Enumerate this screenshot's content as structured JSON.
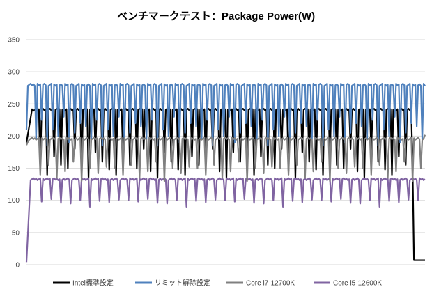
{
  "chart_data": {
    "type": "line",
    "title": "ベンチマークテスト：Package Power(W)",
    "xlabel": "",
    "ylabel": "",
    "ylim": [
      0,
      350
    ],
    "yticks": [
      0,
      50,
      100,
      150,
      200,
      250,
      300,
      350
    ],
    "grid": true,
    "legend_position": "bottom",
    "x_count": 290,
    "series": [
      {
        "name": "Intel標準設定",
        "color": "#000000",
        "baseline": 241,
        "start_value": 190,
        "ramp_end_index": 4,
        "end_value": 7,
        "drop_start_index": 281,
        "dip_every": 5,
        "dip_values": [
          175,
          160,
          148,
          140,
          168,
          155,
          150,
          180,
          145,
          135
        ]
      },
      {
        "name": "リミット解除設定",
        "color": "#4f81bd",
        "baseline": 280,
        "start_value": 210,
        "ramp_end_index": 1,
        "end_value": 278,
        "drop_start_index": 290,
        "dip_every": 4,
        "dip_values": [
          215,
          195,
          225,
          185,
          210,
          200,
          230,
          190,
          205,
          220
        ]
      },
      {
        "name": "Core i7-12700K",
        "color": "#808080",
        "baseline": 196,
        "start_value": 186,
        "ramp_end_index": 2,
        "end_value": 202,
        "drop_start_index": 290,
        "dip_every": 6,
        "dip_values": [
          150,
          140,
          155,
          135,
          145,
          160,
          130,
          150,
          142,
          152
        ]
      },
      {
        "name": "Core i5-12600K",
        "color": "#8064a2",
        "baseline": 133,
        "start_value": 4,
        "ramp_end_index": 3,
        "end_value": 133,
        "drop_start_index": 290,
        "dip_every": 7,
        "dip_values": [
          100,
          98,
          102,
          96,
          95,
          100,
          90,
          99,
          97,
          101
        ]
      }
    ]
  }
}
